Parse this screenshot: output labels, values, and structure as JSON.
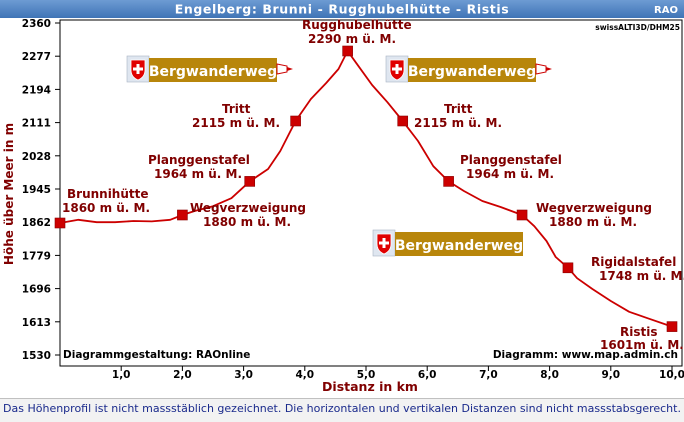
{
  "header": {
    "title": "Engelberg: Brunni - Rugghubelhütte - Ristis",
    "badge": "RAO"
  },
  "source_tag": "swissALTI3D/DHM25",
  "credits": {
    "left": "Diagrammgestaltung: RAOnline",
    "right": "Diagramm: www.map.admin.ch"
  },
  "footnote": "Das Höhenprofil ist nicht massstäblich gezeichnet. Die horizontalen und vertikalen Distanzen sind nicht massstabsgerecht.",
  "trail_signs": [
    {
      "label": "Bergwanderweg",
      "icon": "swiss-cross-icon"
    },
    {
      "label": "Bergwanderweg",
      "icon": "swiss-cross-icon"
    },
    {
      "label": "Bergwanderweg",
      "icon": "swiss-cross-icon"
    }
  ],
  "colors": {
    "header_bg": "#4f86c6",
    "line": "#cc0000",
    "marker": "#cc0000",
    "label": "#800000",
    "axis_label": "#800000",
    "sign_bg": "#b8860b"
  },
  "chart_data": {
    "type": "line",
    "xlabel": "Distanz in km",
    "ylabel": "Höhe über Meer in m",
    "xlim": [
      0,
      10.1
    ],
    "ylim": [
      1530,
      2360
    ],
    "xticks": [
      "1,0",
      "2,0",
      "3,0",
      "4,0",
      "5,0",
      "6,0",
      "7,0",
      "8,0",
      "9,0",
      "10,0"
    ],
    "yticks": [
      "1530",
      "1613",
      "1696",
      "1779",
      "1862",
      "1945",
      "2028",
      "2111",
      "2194",
      "2277",
      "2360"
    ],
    "grid": false,
    "profile": {
      "x": [
        0,
        0.3,
        0.6,
        0.9,
        1.2,
        1.5,
        1.8,
        2.0,
        2.2,
        2.5,
        2.8,
        3.1,
        3.4,
        3.6,
        3.85,
        4.1,
        4.35,
        4.55,
        4.7,
        4.85,
        5.1,
        5.35,
        5.6,
        5.85,
        6.1,
        6.35,
        6.6,
        6.9,
        7.2,
        7.55,
        7.75,
        7.95,
        8.1,
        8.3,
        8.45,
        8.7,
        9.0,
        9.3,
        9.6,
        10.0
      ],
      "y": [
        1860,
        1868,
        1862,
        1862,
        1865,
        1864,
        1868,
        1880,
        1890,
        1902,
        1922,
        1964,
        1995,
        2040,
        2115,
        2170,
        2210,
        2245,
        2290,
        2258,
        2205,
        2162,
        2115,
        2065,
        2002,
        1964,
        1940,
        1915,
        1900,
        1880,
        1852,
        1815,
        1775,
        1748,
        1722,
        1695,
        1665,
        1638,
        1622,
        1601
      ]
    },
    "waypoints": [
      {
        "name": "Brunnihütte",
        "elev": "1860 m ü. M.",
        "x": 0.0,
        "y": 1860
      },
      {
        "name": "Wegverzweigung",
        "elev": "1880 m ü. M.",
        "x": 2.0,
        "y": 1880
      },
      {
        "name": "Planggenstafel",
        "elev": "1964 m ü. M.",
        "x": 3.1,
        "y": 1964
      },
      {
        "name": "Tritt",
        "elev": "2115 m ü. M.",
        "x": 3.85,
        "y": 2115
      },
      {
        "name": "Rugghubelhütte",
        "elev": "2290 m ü. M.",
        "x": 4.7,
        "y": 2290
      },
      {
        "name": "Tritt",
        "elev": "2115 m ü. M.",
        "x": 5.6,
        "y": 2115
      },
      {
        "name": "Planggenstafel",
        "elev": "1964 m ü. M.",
        "x": 6.35,
        "y": 1964
      },
      {
        "name": "Wegverzweigung",
        "elev": "1880 m ü. M.",
        "x": 7.55,
        "y": 1880
      },
      {
        "name": "Rigidalstafel",
        "elev": "1748 m ü. M.",
        "x": 8.3,
        "y": 1748
      },
      {
        "name": "Ristis",
        "elev": "1601m ü. M.",
        "x": 10.0,
        "y": 1601
      }
    ]
  }
}
